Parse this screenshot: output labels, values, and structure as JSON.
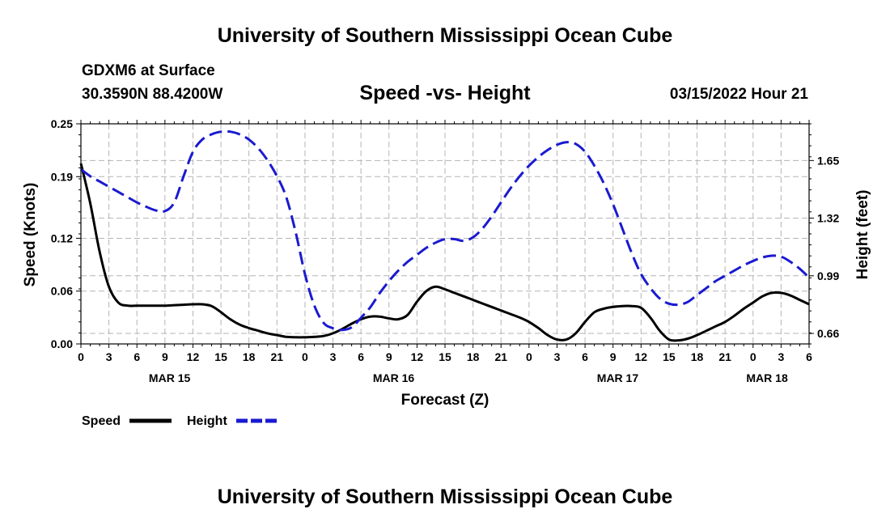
{
  "header": {
    "title": "University of Southern Mississippi Ocean Cube",
    "station": "GDXM6 at Surface",
    "coordinates": "30.3590N  88.4200W",
    "subtitle": "Speed -vs- Height",
    "datetime": "03/15/2022 Hour 21",
    "bottom_title": "University of Southern Mississippi Ocean Cube"
  },
  "colors": {
    "speed": "#000000",
    "height": "#1a1ad0",
    "grid": "#b4b4b4"
  },
  "chart_data": {
    "type": "line",
    "title": "Speed -vs- Height",
    "xlabel": "Forecast (Z)",
    "ylabel_left": "Speed (Knots)",
    "ylabel_right": "Height (feet)",
    "x_unit": "hours from 00Z MAR 14",
    "xlim": [
      0,
      78
    ],
    "x_tick_labels": [
      "0",
      "3",
      "6",
      "9",
      "12",
      "15",
      "18",
      "21",
      "0",
      "3",
      "6",
      "9",
      "12",
      "15",
      "18",
      "21",
      "0",
      "3",
      "6",
      "9",
      "12",
      "15",
      "18",
      "21",
      "0",
      "3",
      "6"
    ],
    "date_labels": [
      {
        "label": "MAR 15",
        "hour": 9.5
      },
      {
        "label": "MAR 16",
        "hour": 33.5
      },
      {
        "label": "MAR 17",
        "hour": 57.5
      },
      {
        "label": "MAR 18",
        "hour": 73.5
      }
    ],
    "ylim_left": [
      0,
      0.25
    ],
    "y_ticks_left": [
      "0.00",
      "0.06",
      "0.12",
      "0.19",
      "0.25"
    ],
    "ylim_right": [
      0.6,
      1.86
    ],
    "y_ticks_right": [
      "0.66",
      "0.99",
      "1.32",
      "1.65"
    ],
    "grid": true,
    "series": [
      {
        "name": "Speed",
        "axis": "left",
        "style": "solid",
        "x": [
          0,
          1,
          2,
          3,
          4,
          5,
          6,
          7,
          8,
          9,
          10,
          11,
          12,
          13,
          14,
          15,
          16,
          17,
          18,
          19,
          20,
          21,
          22,
          23,
          24,
          25,
          26,
          27,
          28,
          29,
          30,
          31,
          32,
          33,
          34,
          35,
          36,
          37,
          38,
          39,
          40,
          41,
          42,
          43,
          44,
          45,
          46,
          47,
          48,
          49,
          50,
          51,
          52,
          53,
          54,
          55,
          56,
          57,
          58,
          59,
          60,
          61,
          62,
          63,
          64,
          65,
          66,
          67,
          68,
          69,
          70,
          71,
          72,
          73,
          74,
          75,
          76,
          77,
          78
        ],
        "values": [
          0.205,
          0.16,
          0.105,
          0.065,
          0.047,
          0.0435,
          0.0435,
          0.0435,
          0.0435,
          0.0435,
          0.044,
          0.0445,
          0.045,
          0.045,
          0.043,
          0.036,
          0.028,
          0.022,
          0.018,
          0.015,
          0.012,
          0.01,
          0.008,
          0.0075,
          0.0075,
          0.008,
          0.009,
          0.012,
          0.017,
          0.023,
          0.028,
          0.031,
          0.031,
          0.029,
          0.028,
          0.033,
          0.048,
          0.06,
          0.065,
          0.062,
          0.058,
          0.054,
          0.05,
          0.046,
          0.042,
          0.038,
          0.034,
          0.03,
          0.025,
          0.018,
          0.01,
          0.005,
          0.005,
          0.012,
          0.025,
          0.036,
          0.04,
          0.042,
          0.043,
          0.043,
          0.041,
          0.03,
          0.015,
          0.005,
          0.004,
          0.006,
          0.01,
          0.015,
          0.02,
          0.025,
          0.032,
          0.04,
          0.047,
          0.054,
          0.058,
          0.058,
          0.055,
          0.05,
          0.045
        ]
      },
      {
        "name": "Height",
        "axis": "right",
        "style": "dashed",
        "x": [
          0,
          1,
          2,
          3,
          4,
          5,
          6,
          7,
          8,
          9,
          10,
          11,
          12,
          13,
          14,
          15,
          16,
          17,
          18,
          19,
          20,
          21,
          22,
          23,
          24,
          25,
          26,
          27,
          28,
          29,
          30,
          31,
          32,
          33,
          34,
          35,
          36,
          37,
          38,
          39,
          40,
          41,
          42,
          43,
          44,
          45,
          46,
          47,
          48,
          49,
          50,
          51,
          52,
          53,
          54,
          55,
          56,
          57,
          58,
          59,
          60,
          61,
          62,
          63,
          64,
          65,
          66,
          67,
          68,
          69,
          70,
          71,
          72,
          73,
          74,
          75,
          76,
          77,
          78
        ],
        "values": [
          1.6,
          1.56,
          1.53,
          1.5,
          1.47,
          1.44,
          1.41,
          1.385,
          1.365,
          1.36,
          1.41,
          1.56,
          1.7,
          1.77,
          1.8,
          1.815,
          1.815,
          1.8,
          1.77,
          1.72,
          1.65,
          1.56,
          1.44,
          1.24,
          1.0,
          0.82,
          0.72,
          0.69,
          0.68,
          0.695,
          0.75,
          0.81,
          0.89,
          0.96,
          1.02,
          1.07,
          1.11,
          1.15,
          1.18,
          1.2,
          1.2,
          1.19,
          1.21,
          1.26,
          1.33,
          1.41,
          1.49,
          1.56,
          1.62,
          1.67,
          1.71,
          1.74,
          1.755,
          1.745,
          1.7,
          1.62,
          1.52,
          1.4,
          1.26,
          1.12,
          1.0,
          0.92,
          0.86,
          0.83,
          0.825,
          0.84,
          0.88,
          0.92,
          0.96,
          0.99,
          1.02,
          1.05,
          1.075,
          1.095,
          1.105,
          1.1,
          1.07,
          1.03,
          0.98
        ]
      }
    ],
    "legend": [
      {
        "label": "Speed",
        "style": "solid"
      },
      {
        "label": "Height",
        "style": "dashed"
      }
    ],
    "legend_position": "bottom-left"
  }
}
